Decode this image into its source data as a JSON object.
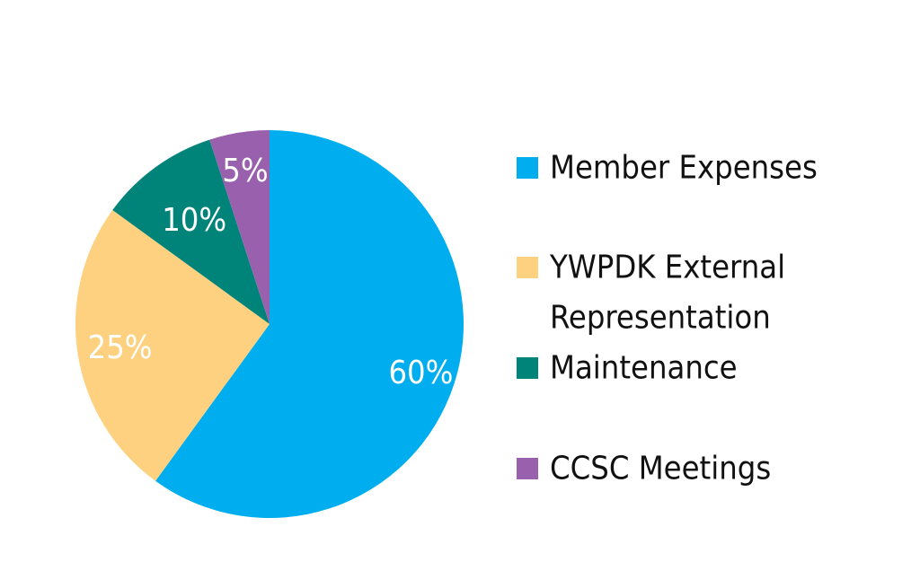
{
  "chart_data": {
    "type": "pie",
    "title": "",
    "legend_position": "right",
    "slices": [
      {
        "label": "Member Expenses",
        "legend_lines": [
          "Member Expenses"
        ],
        "value": 60,
        "display": "60%",
        "color": "#00aeef"
      },
      {
        "label": "YWPDK External Representation",
        "legend_lines": [
          "YWPDK External",
          "Representation"
        ],
        "value": 25,
        "display": "25%",
        "color": "#fdd17f"
      },
      {
        "label": "Maintenance",
        "legend_lines": [
          "Maintenance"
        ],
        "value": 10,
        "display": "10%",
        "color": "#00847a"
      },
      {
        "label": "CCSC Meetings",
        "legend_lines": [
          "CCSC Meetings"
        ],
        "value": 5,
        "display": "5%",
        "color": "#9860ad"
      }
    ]
  }
}
